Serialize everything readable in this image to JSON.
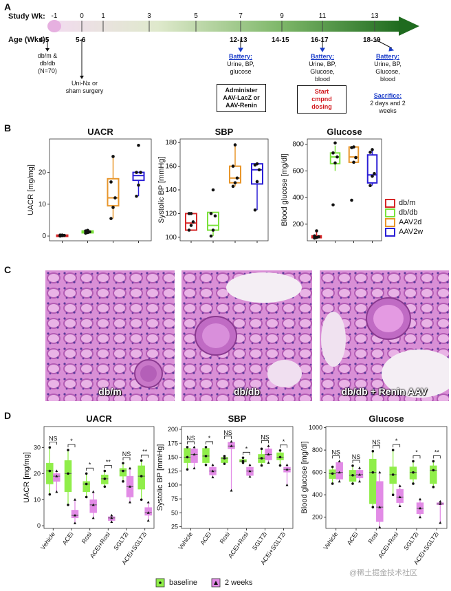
{
  "panel_labels": {
    "a": "A",
    "b": "B",
    "c": "C",
    "d": "D"
  },
  "timeline": {
    "study_wk_label": "Study Wk:",
    "age_label": "Age (Wks):",
    "weeks": [
      "-1",
      "0",
      "1",
      "3",
      "5",
      "7",
      "9",
      "11",
      "13"
    ],
    "ages": [
      "4-5",
      "5-6",
      "12-13",
      "14-15",
      "16-17",
      "18-19"
    ],
    "cohort_note": [
      "db/m &",
      "db/db",
      "(N=70)"
    ],
    "surgery_note": [
      "Uni-Nx or",
      "sham surgery"
    ],
    "battery_heading": "Battery:",
    "battery_7": [
      "Urine, BP,",
      "glucose"
    ],
    "battery_11": [
      "Urine, BP,",
      "Glucose,",
      "blood"
    ],
    "battery_13": [
      "Urine, BP,",
      "Glucose,",
      "blood"
    ],
    "administer_box": [
      "Administer",
      "AAV-LacZ or",
      "AAV-Renin"
    ],
    "start_box": [
      "Start",
      "cmpnd",
      "dosing"
    ],
    "sacrifice_heading": "Sacrifice:",
    "sacrifice_note": [
      "2 days and 2",
      "weeks"
    ]
  },
  "histology": {
    "labels": [
      "db/m",
      "db/db",
      "db/db + Renin AAV"
    ]
  },
  "legend_b": {
    "items": [
      {
        "label": "db/m",
        "color": "#d62728"
      },
      {
        "label": "db/db",
        "color": "#7be23b"
      },
      {
        "label": "AAV2d",
        "color": "#e8962b"
      },
      {
        "label": "AAV2w",
        "color": "#2b1fd6"
      }
    ]
  },
  "legend_d": {
    "baseline": "baseline",
    "weeks2": "2 weeks",
    "baseline_color": "#90ee4a",
    "weeks2_color": "#e28be6"
  },
  "watermark": "@稀土掘金技术社区",
  "chart_data": [
    {
      "id": "B-UACR",
      "type": "box",
      "title": "UACR",
      "ylabel": "UACR [mg/mg]",
      "ylim": [
        -1.5,
        30.5
      ],
      "yticks": [
        0,
        10,
        20
      ],
      "categories": [
        "db/m",
        "db/db",
        "AAV2d",
        "AAV2w"
      ],
      "groups": [
        {
          "q1": 0.1,
          "med": 0.2,
          "q3": 0.3,
          "wlo": 0,
          "whi": 0.4,
          "color": "#d62728",
          "points": [
            0,
            0.1,
            0.2,
            0.3,
            0.3
          ]
        },
        {
          "q1": 1.0,
          "med": 1.3,
          "q3": 1.6,
          "wlo": 0.8,
          "whi": 1.9,
          "color": "#7be23b",
          "points": [
            0.9,
            1.1,
            1.3,
            1.6,
            1.8
          ]
        },
        {
          "q1": 9.5,
          "med": 12,
          "q3": 18,
          "wlo": 5.5,
          "whi": 25,
          "color": "#e8962b",
          "points": [
            5.5,
            9,
            12,
            17,
            25
          ]
        },
        {
          "q1": 17.5,
          "med": 19,
          "q3": 20,
          "wlo": 12.5,
          "whi": 20,
          "color": "#2b1fd6",
          "points": [
            12.5,
            16,
            20,
            20,
            28.5
          ]
        }
      ]
    },
    {
      "id": "B-SBP",
      "type": "box",
      "title": "SBP",
      "ylabel": "Systolic BP [mmHg]",
      "ylim": [
        97,
        183
      ],
      "yticks": [
        100,
        120,
        140,
        160,
        180
      ],
      "categories": [
        "db/m",
        "db/db",
        "AAV2d",
        "AAV2w"
      ],
      "groups": [
        {
          "q1": 106,
          "med": 112,
          "q3": 120,
          "wlo": 106,
          "whi": 120,
          "color": "#d62728",
          "points": [
            106,
            110,
            113,
            120,
            120
          ]
        },
        {
          "q1": 106,
          "med": 110,
          "q3": 121,
          "wlo": 101,
          "whi": 121,
          "color": "#7be23b",
          "points": [
            101,
            106,
            118,
            120,
            140
          ]
        },
        {
          "q1": 146,
          "med": 150,
          "q3": 160,
          "wlo": 143,
          "whi": 178,
          "color": "#e8962b",
          "points": [
            143,
            146,
            150,
            160,
            178
          ]
        },
        {
          "q1": 145,
          "med": 157,
          "q3": 162,
          "wlo": 123,
          "whi": 162,
          "color": "#2b1fd6",
          "points": [
            123,
            147,
            157,
            161,
            162
          ]
        }
      ]
    },
    {
      "id": "B-Glucose",
      "type": "box",
      "title": "Glucose",
      "ylabel": "Blood glucose [mg/dl]",
      "ylim": [
        75,
        840
      ],
      "yticks": [
        200,
        400,
        600,
        800
      ],
      "categories": [
        "db/m",
        "db/db",
        "AAV2d",
        "AAV2w"
      ],
      "groups": [
        {
          "q1": 98,
          "med": 105,
          "q3": 112,
          "wlo": 95,
          "whi": 150,
          "color": "#d62728",
          "points": [
            95,
            100,
            105,
            112,
            150
          ]
        },
        {
          "q1": 655,
          "med": 705,
          "q3": 735,
          "wlo": 600,
          "whi": 790,
          "color": "#7be23b",
          "points": [
            345,
            660,
            705,
            735,
            810
          ]
        },
        {
          "q1": 665,
          "med": 705,
          "q3": 780,
          "wlo": 665,
          "whi": 780,
          "color": "#e8962b",
          "points": [
            380,
            665,
            700,
            775,
            780
          ]
        },
        {
          "q1": 510,
          "med": 570,
          "q3": 720,
          "wlo": 490,
          "whi": 760,
          "color": "#2b1fd6",
          "points": [
            490,
            560,
            580,
            740,
            760
          ]
        }
      ]
    },
    {
      "id": "D-UACR",
      "type": "paired-box",
      "title": "UACR",
      "ylabel": "UACR [mg/mg]",
      "ylim": [
        -1,
        38
      ],
      "yticks": [
        0,
        10,
        20,
        30
      ],
      "categories": [
        "Vehicle",
        "ACEi",
        "Rosi",
        "ACEi+Rosi",
        "SGLT2i",
        "ACEi+SGLT2i"
      ],
      "significance": [
        "NS",
        "*",
        "*",
        "**",
        "NS",
        "**"
      ],
      "baseline": [
        {
          "q1": 16,
          "med": 21,
          "q3": 24,
          "wlo": 12,
          "whi": 30
        },
        {
          "q1": 13,
          "med": 20,
          "q3": 25,
          "wlo": 8,
          "whi": 29
        },
        {
          "q1": 13,
          "med": 16,
          "q3": 17,
          "wlo": 11,
          "whi": 20
        },
        {
          "q1": 16,
          "med": 18,
          "q3": 19.5,
          "wlo": 15,
          "whi": 21
        },
        {
          "q1": 19,
          "med": 21,
          "q3": 22,
          "wlo": 17,
          "whi": 24
        },
        {
          "q1": 14,
          "med": 19,
          "q3": 23,
          "wlo": 10,
          "whi": 25
        }
      ],
      "weeks2": [
        {
          "q1": 17,
          "med": 19,
          "q3": 20,
          "wlo": 13,
          "whi": 21
        },
        {
          "q1": 3,
          "med": 4,
          "q3": 6,
          "wlo": 1,
          "whi": 10
        },
        {
          "q1": 5,
          "med": 8,
          "q3": 10,
          "wlo": 3,
          "whi": 13
        },
        {
          "q1": 2,
          "med": 3,
          "q3": 3.5,
          "wlo": 1.5,
          "whi": 4
        },
        {
          "q1": 11,
          "med": 15,
          "q3": 19,
          "wlo": 9,
          "whi": 22
        },
        {
          "q1": 4,
          "med": 5,
          "q3": 7,
          "wlo": 2,
          "whi": 9
        }
      ]
    },
    {
      "id": "D-SBP",
      "type": "paired-box",
      "title": "SBP",
      "ylabel": "Systolic BP [mmHg]",
      "ylim": [
        22,
        205
      ],
      "yticks": [
        25,
        50,
        75,
        100,
        125,
        150,
        175,
        200
      ],
      "categories": [
        "Vehicle",
        "ACEi",
        "Rosi",
        "ACEi+Rosi",
        "SGLT2i",
        "ACEi+SGLT2i"
      ],
      "significance": [
        "NS",
        "*",
        "NS",
        "*",
        "NS",
        "*"
      ],
      "baseline": [
        {
          "q1": 140,
          "med": 150,
          "q3": 166,
          "wlo": 128,
          "whi": 168
        },
        {
          "q1": 140,
          "med": 152,
          "q3": 166,
          "wlo": 136,
          "whi": 168
        },
        {
          "q1": 140,
          "med": 148,
          "q3": 150,
          "wlo": 138,
          "whi": 152
        },
        {
          "q1": 141,
          "med": 143,
          "q3": 146,
          "wlo": 140,
          "whi": 149
        },
        {
          "q1": 140,
          "med": 148,
          "q3": 155,
          "wlo": 135,
          "whi": 165
        },
        {
          "q1": 145,
          "med": 150,
          "q3": 158,
          "wlo": 135,
          "whi": 162
        }
      ],
      "weeks2": [
        {
          "q1": 140,
          "med": 155,
          "q3": 165,
          "wlo": 130,
          "whi": 168
        },
        {
          "q1": 118,
          "med": 125,
          "q3": 132,
          "wlo": 114,
          "whi": 136
        },
        {
          "q1": 165,
          "med": 170,
          "q3": 177,
          "wlo": 90,
          "whi": 178
        },
        {
          "q1": 117,
          "med": 125,
          "q3": 132,
          "wlo": 115,
          "whi": 136
        },
        {
          "q1": 145,
          "med": 155,
          "q3": 165,
          "wlo": 140,
          "whi": 170
        },
        {
          "q1": 123,
          "med": 128,
          "q3": 132,
          "wlo": 100,
          "whi": 136
        }
      ]
    },
    {
      "id": "D-Glucose",
      "type": "paired-box",
      "title": "Glucose",
      "ylabel": "Blood glucose [mg/dl]",
      "ylim": [
        100,
        1010
      ],
      "yticks": [
        200,
        400,
        600,
        800,
        1000
      ],
      "categories": [
        "Vehicle",
        "ACEi",
        "Rosi",
        "ACEi+Rosi",
        "SGLT2i",
        "ACEi+SGLT2i"
      ],
      "significance": [
        "NS",
        "NS",
        "NS",
        "*",
        "*",
        "**"
      ],
      "baseline": [
        {
          "q1": 545,
          "med": 590,
          "q3": 625,
          "wlo": 500,
          "whi": 650
        },
        {
          "q1": 520,
          "med": 575,
          "q3": 620,
          "wlo": 500,
          "whi": 660
        },
        {
          "q1": 320,
          "med": 600,
          "q3": 720,
          "wlo": 290,
          "whi": 790
        },
        {
          "q1": 500,
          "med": 580,
          "q3": 650,
          "wlo": 400,
          "whi": 800
        },
        {
          "q1": 540,
          "med": 600,
          "q3": 650,
          "wlo": 500,
          "whi": 700
        },
        {
          "q1": 500,
          "med": 620,
          "q3": 660,
          "wlo": 470,
          "whi": 700
        }
      ],
      "weeks2": [
        {
          "q1": 540,
          "med": 600,
          "q3": 690,
          "wlo": 520,
          "whi": 700
        },
        {
          "q1": 550,
          "med": 580,
          "q3": 620,
          "wlo": 520,
          "whi": 640
        },
        {
          "q1": 160,
          "med": 290,
          "q3": 520,
          "wlo": 110,
          "whi": 600
        },
        {
          "q1": 330,
          "med": 380,
          "q3": 450,
          "wlo": 300,
          "whi": 480
        },
        {
          "q1": 230,
          "med": 280,
          "q3": 330,
          "wlo": 200,
          "whi": 360
        },
        {
          "q1": 310,
          "med": 320,
          "q3": 330,
          "wlo": 150,
          "whi": 340
        }
      ]
    }
  ]
}
